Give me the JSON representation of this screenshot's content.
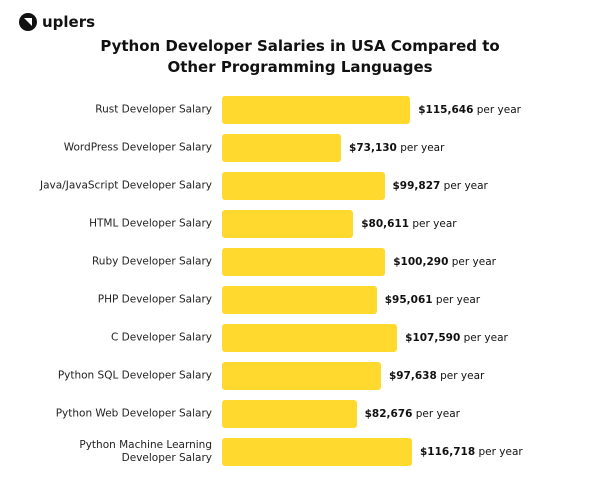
{
  "logo": "uplers",
  "chart_data": {
    "type": "bar",
    "orientation": "horizontal",
    "title": "Python Developer Salaries in USA Compared to Other Programming Languages",
    "categories": [
      "Rust Developer Salary",
      "WordPress Developer Salary",
      "Java/JavaScript Developer Salary",
      "HTML Developer Salary",
      "Ruby Developer Salary",
      "PHP Developer Salary",
      "C Developer Salary",
      "Python SQL Developer Salary",
      "Python Web Developer Salary",
      "Python Machine Learning Developer Salary"
    ],
    "values": [
      115646,
      73130,
      99827,
      80611,
      100290,
      95061,
      107590,
      97638,
      82676,
      116718
    ],
    "value_labels": [
      "$115,646",
      "$73,130",
      "$99,827",
      "$80,611",
      "$100,290",
      "$95,061",
      "$107,590",
      "$97,638",
      "$82,676",
      "$116,718"
    ],
    "value_label_suffix": "per year",
    "color": "#ffd92e"
  }
}
